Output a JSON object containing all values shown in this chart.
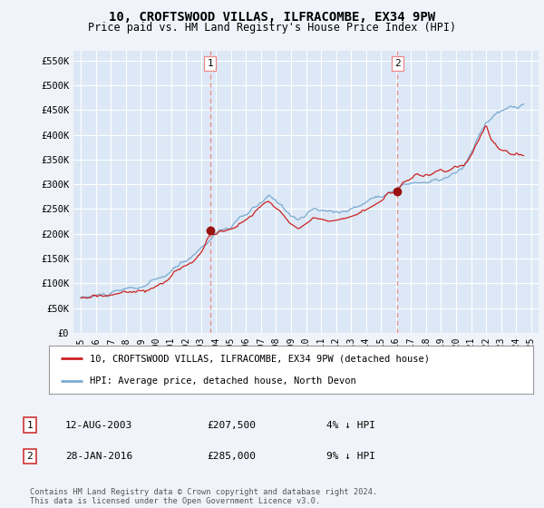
{
  "title": "10, CROFTSWOOD VILLAS, ILFRACOMBE, EX34 9PW",
  "subtitle": "Price paid vs. HM Land Registry's House Price Index (HPI)",
  "bg_color": "#f0f4fa",
  "plot_bg_color": "#dce8f5",
  "grid_color": "#ffffff",
  "hpi_color": "#7aaad0",
  "price_color": "#cc2222",
  "marker_color": "#991111",
  "vline_color": "#ee8888",
  "sale1_x": 2003.617,
  "sale1_y": 207500,
  "sale2_x": 2016.083,
  "sale2_y": 285000,
  "legend_line1": "10, CROFTSWOOD VILLAS, ILFRACOMBE, EX34 9PW (detached house)",
  "legend_line2": "HPI: Average price, detached house, North Devon",
  "table_rows": [
    {
      "num": "1",
      "date": "12-AUG-2003",
      "price": "£207,500",
      "hpi": "4% ↓ HPI"
    },
    {
      "num": "2",
      "date": "28-JAN-2016",
      "price": "£285,000",
      "hpi": "9% ↓ HPI"
    }
  ],
  "footer": "Contains HM Land Registry data © Crown copyright and database right 2024.\nThis data is licensed under the Open Government Licence v3.0.",
  "ylim_max": 570000,
  "ylim_min": 0,
  "xlim_min": 1994.5,
  "xlim_max": 2025.5,
  "yticks": [
    0,
    50000,
    100000,
    150000,
    200000,
    250000,
    300000,
    350000,
    400000,
    450000,
    500000,
    550000
  ],
  "ytick_labels": [
    "£0",
    "£50K",
    "£100K",
    "£150K",
    "£200K",
    "£250K",
    "£300K",
    "£350K",
    "£400K",
    "£450K",
    "£500K",
    "£550K"
  ],
  "xticks": [
    1995,
    1996,
    1997,
    1998,
    1999,
    2000,
    2001,
    2002,
    2003,
    2004,
    2005,
    2006,
    2007,
    2008,
    2009,
    2010,
    2011,
    2012,
    2013,
    2014,
    2015,
    2016,
    2017,
    2018,
    2019,
    2020,
    2021,
    2022,
    2023,
    2024,
    2025
  ]
}
